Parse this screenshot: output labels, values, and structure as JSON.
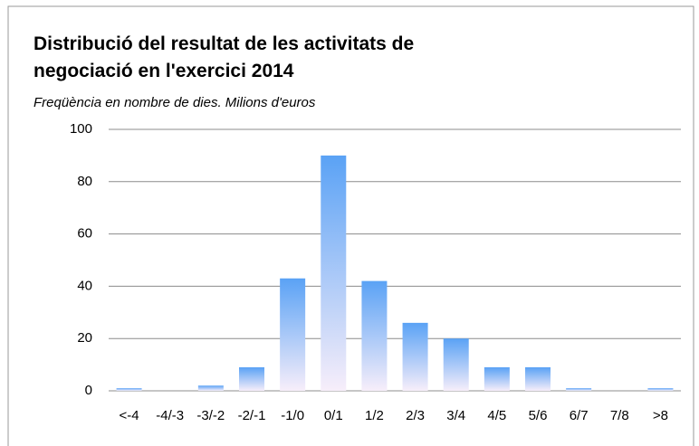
{
  "chart_data": {
    "type": "bar",
    "title": "Distribució del resultat de les activitats de negociació en l'exercici 2014",
    "subtitle": "Freqüència en nombre de dies. Milions d'euros",
    "categories": [
      "<-4",
      "-4/-3",
      "-3/-2",
      "-2/-1",
      "-1/0",
      "0/1",
      "1/2",
      "2/3",
      "3/4",
      "4/5",
      "5/6",
      "6/7",
      "7/8",
      ">8"
    ],
    "values": [
      1,
      0,
      2,
      9,
      43,
      90,
      42,
      26,
      20,
      9,
      9,
      1,
      0,
      1
    ],
    "color": [
      "#5aa2f5",
      "#f7eefa"
    ],
    "ylim": [
      0,
      100
    ],
    "yticks": [
      0,
      20,
      40,
      60,
      80,
      100
    ],
    "grid": true
  }
}
